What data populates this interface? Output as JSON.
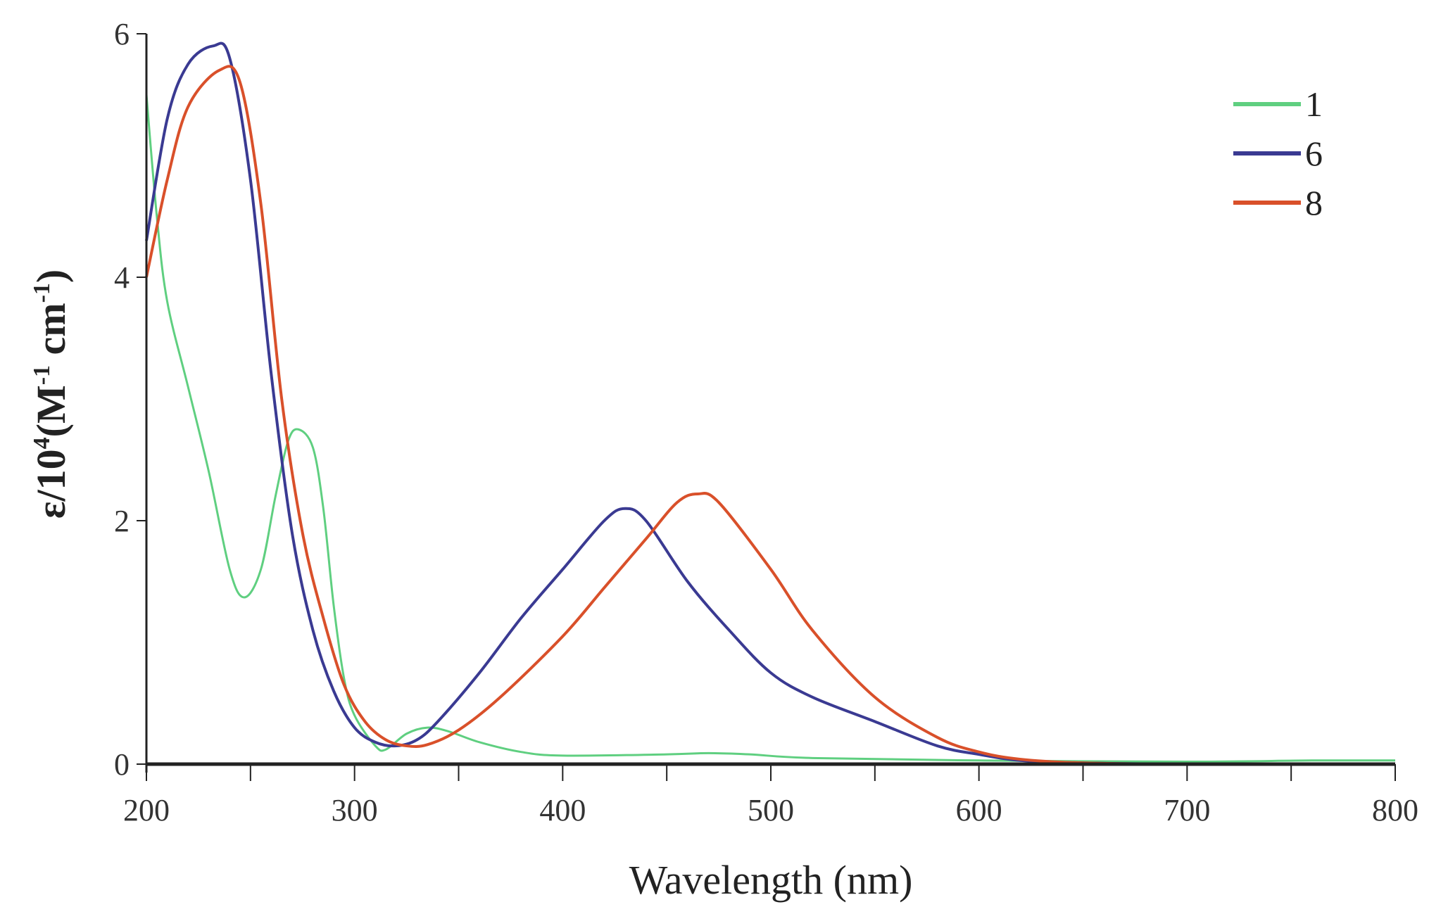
{
  "chart_data": {
    "type": "line",
    "xlabel": "Wavelength (nm)",
    "ylabel_parts": {
      "base": "ε/10",
      "exp": "4",
      "open": "(M",
      "exp2": "-1",
      "mid": " cm",
      "exp3": "-1",
      "close": ")"
    },
    "xlim": [
      200,
      800
    ],
    "ylim": [
      0,
      6
    ],
    "xticks": [
      200,
      300,
      400,
      500,
      600,
      700,
      800
    ],
    "xminor": [
      250,
      350,
      450,
      550,
      650,
      750
    ],
    "yticks": [
      0,
      2,
      4,
      6
    ],
    "grid": false,
    "legend_placement": "top-right",
    "series": [
      {
        "name": "1",
        "color": "#5fcf80",
        "x": [
          200,
          205,
          210,
          220,
          230,
          240,
          247,
          255,
          262,
          268,
          273,
          280,
          285,
          290,
          295,
          300,
          310,
          315,
          325,
          335,
          345,
          360,
          380,
          400,
          450,
          470,
          490,
          520,
          600,
          700,
          760,
          800
        ],
        "y": [
          5.5,
          4.5,
          3.8,
          3.1,
          2.4,
          1.6,
          1.37,
          1.6,
          2.2,
          2.65,
          2.75,
          2.6,
          2.1,
          1.3,
          0.7,
          0.4,
          0.15,
          0.12,
          0.25,
          0.3,
          0.27,
          0.18,
          0.1,
          0.07,
          0.08,
          0.09,
          0.08,
          0.05,
          0.03,
          0.02,
          0.03,
          0.03
        ]
      },
      {
        "name": "6",
        "color": "#3a3a92",
        "x": [
          200,
          210,
          220,
          232,
          240,
          250,
          260,
          270,
          280,
          290,
          300,
          310,
          320,
          330,
          340,
          360,
          380,
          400,
          420,
          430,
          440,
          460,
          480,
          500,
          520,
          550,
          580,
          600,
          620,
          650,
          700,
          800
        ],
        "y": [
          4.3,
          5.3,
          5.75,
          5.9,
          5.8,
          4.8,
          3.2,
          1.9,
          1.1,
          0.6,
          0.3,
          0.18,
          0.15,
          0.2,
          0.35,
          0.75,
          1.2,
          1.6,
          2.0,
          2.1,
          2.0,
          1.5,
          1.1,
          0.75,
          0.55,
          0.35,
          0.15,
          0.08,
          0.03,
          0.01,
          0,
          0
        ]
      },
      {
        "name": "8",
        "color": "#d9502a",
        "x": [
          200,
          210,
          220,
          235,
          245,
          255,
          265,
          275,
          285,
          295,
          305,
          315,
          325,
          335,
          350,
          370,
          400,
          420,
          440,
          455,
          465,
          475,
          500,
          520,
          550,
          580,
          600,
          620,
          650,
          700,
          800
        ],
        "y": [
          4.0,
          4.8,
          5.4,
          5.7,
          5.6,
          4.6,
          3.0,
          1.9,
          1.2,
          0.65,
          0.35,
          0.2,
          0.15,
          0.16,
          0.28,
          0.55,
          1.05,
          1.45,
          1.85,
          2.15,
          2.22,
          2.15,
          1.6,
          1.1,
          0.55,
          0.22,
          0.1,
          0.04,
          0.01,
          0,
          0
        ]
      }
    ]
  }
}
